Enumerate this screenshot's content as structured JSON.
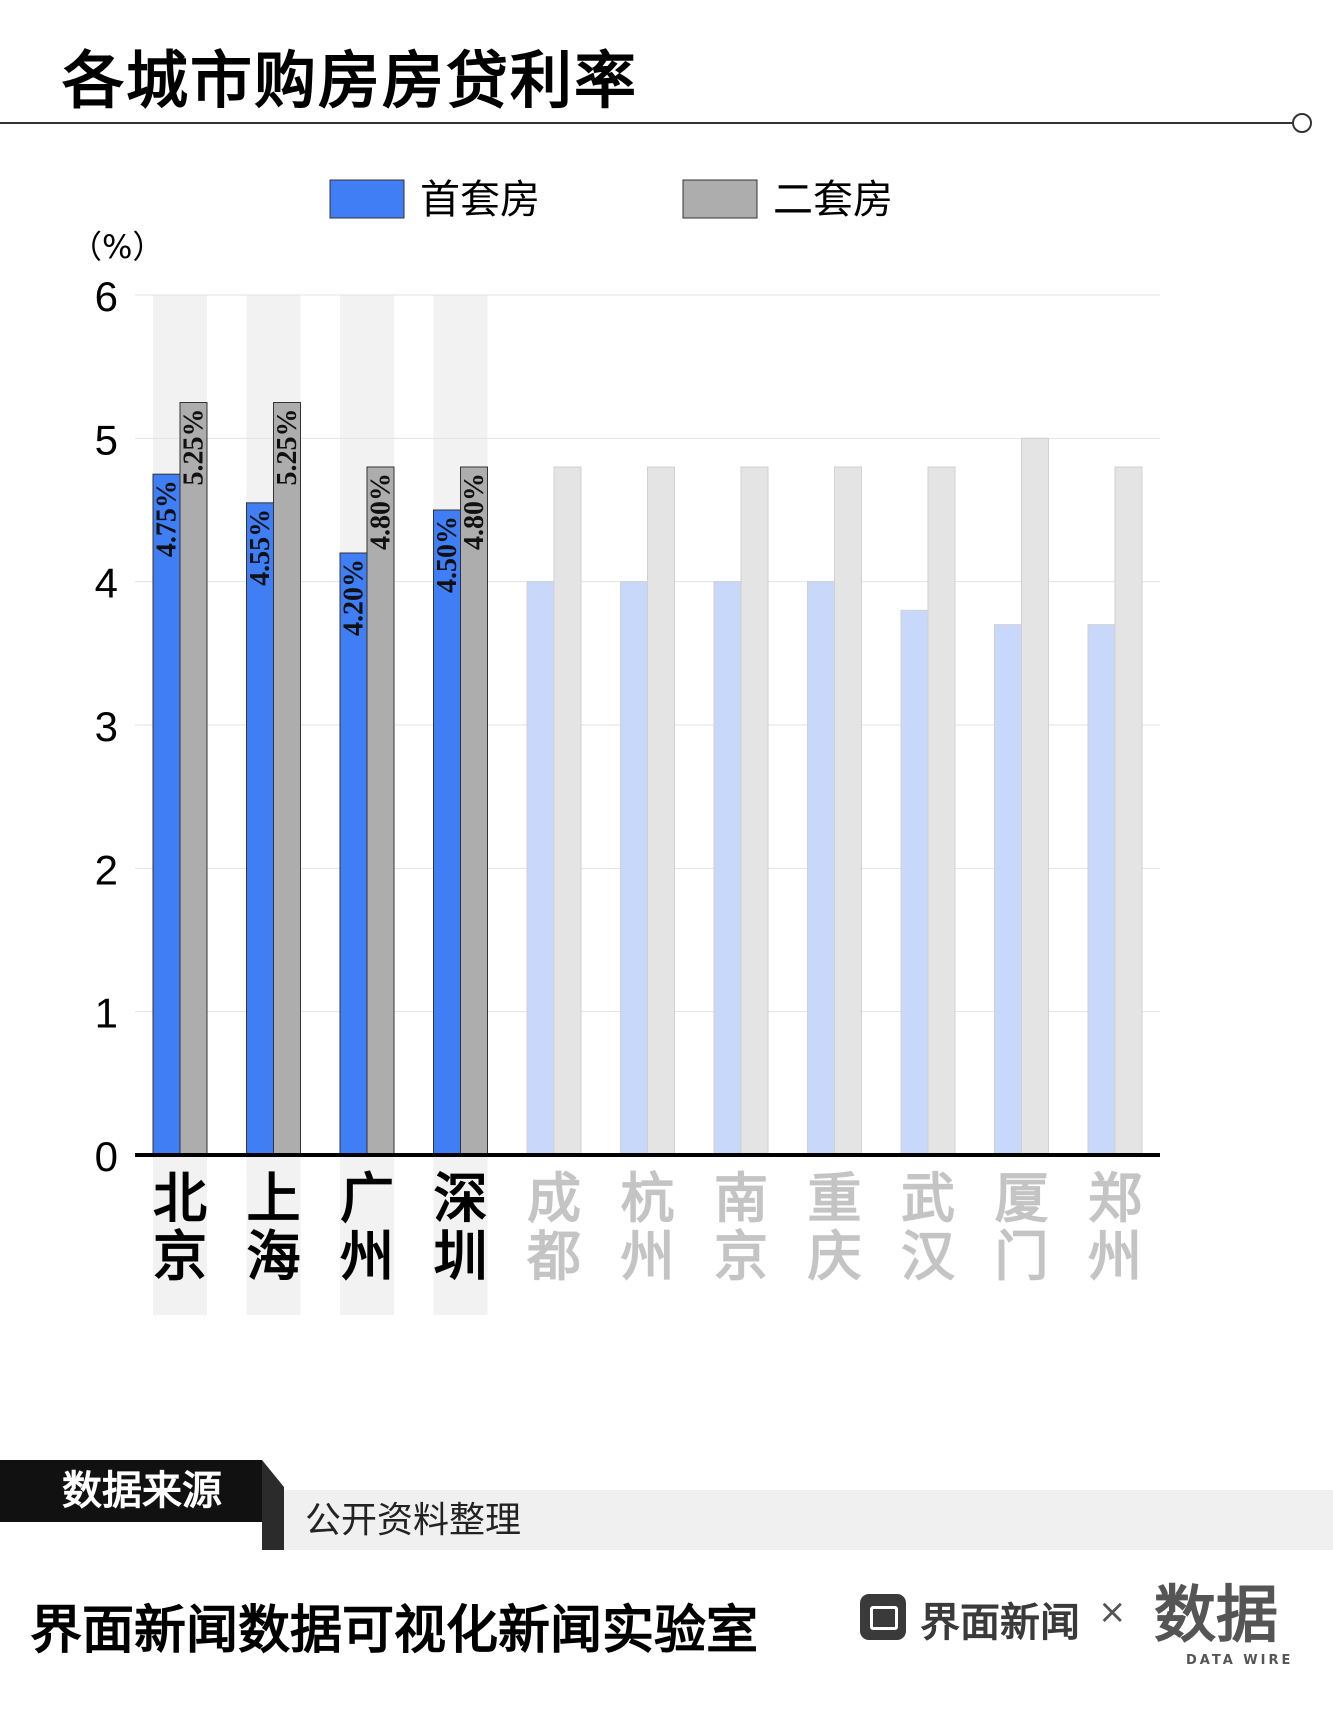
{
  "header": {
    "title": "各城市购房房贷利率"
  },
  "chart_data": {
    "type": "bar",
    "unit_label": "（%）",
    "ylim": [
      0,
      6
    ],
    "yticks": [
      0,
      1,
      2,
      3,
      4,
      5,
      6
    ],
    "categories": [
      "北京",
      "上海",
      "广州",
      "深圳",
      "成都",
      "杭州",
      "南京",
      "重庆",
      "武汉",
      "厦门",
      "郑州"
    ],
    "series": [
      {
        "name": "首套房",
        "color": "#3f7ef5",
        "faded_color": "#c8d8fb",
        "values": [
          4.75,
          4.55,
          4.2,
          4.5,
          4.0,
          4.0,
          4.0,
          4.0,
          3.8,
          3.7,
          3.7
        ]
      },
      {
        "name": "二套房",
        "color": "#adadad",
        "faded_color": "#e4e4e4",
        "values": [
          5.25,
          5.25,
          4.8,
          4.8,
          4.8,
          4.8,
          4.8,
          4.8,
          4.8,
          5.0,
          4.8
        ]
      }
    ],
    "value_labels": [
      [
        "4.75%",
        "5.25%"
      ],
      [
        "4.55%",
        "5.25%"
      ],
      [
        "4.20%",
        "4.80%"
      ],
      [
        "4.50%",
        "4.80%"
      ]
    ],
    "highlighted_count": 4,
    "legend_position": "top-center",
    "grid": true
  },
  "source": {
    "label": "数据来源",
    "text": "公开资料整理"
  },
  "footer": {
    "title": "界面新闻数据可视化新闻实验室",
    "brand": "界面新闻",
    "separator": "×",
    "logo_text": "数据",
    "logo_sub": "DATA WIRE"
  }
}
